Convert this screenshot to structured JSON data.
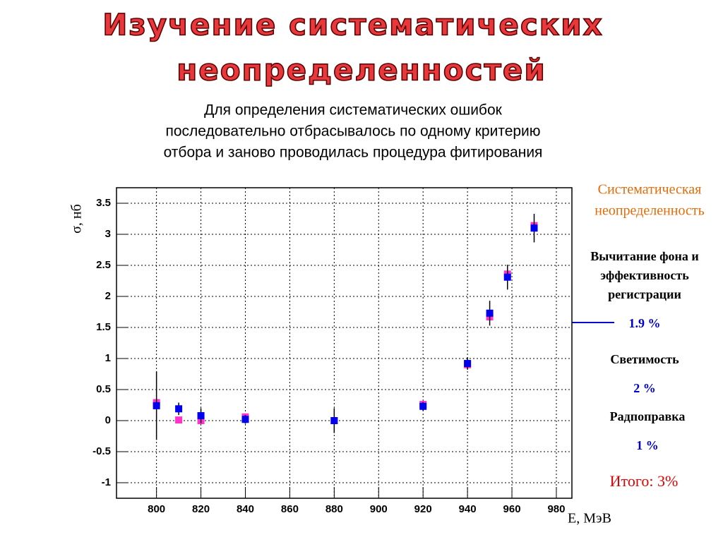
{
  "slide": {
    "title": [
      "Изучение систематических",
      "неопределенностей"
    ],
    "subtitle": [
      "Для определения систематических ошибок",
      "последовательно отбрасывалось по одному критерию",
      "отбора и заново проводилась процедура фитирования"
    ],
    "side": {
      "heading": [
        "Систематическая",
        "неопределенность"
      ],
      "items": [
        {
          "label": [
            "Вычитание фона и",
            "эффективность",
            "регистрации"
          ],
          "value": "1.9 %"
        },
        {
          "label": [
            "Светимость"
          ],
          "value": "2 %"
        },
        {
          "label": [
            "Радпоправка"
          ],
          "value": "1 %"
        }
      ],
      "total": "Итого: 3%"
    }
  },
  "chart_data": {
    "type": "scatter",
    "y_label": "σ, нб",
    "x_label": "E, МэВ",
    "x": [
      800,
      810,
      820,
      840,
      880,
      920,
      940,
      950,
      958,
      970
    ],
    "series": [
      {
        "color": "#ff33cc",
        "values": [
          0.29,
          0.01,
          0.0,
          0.06,
          0.0,
          0.26,
          0.9,
          1.67,
          2.36,
          3.14
        ]
      },
      {
        "color": "#0000ee",
        "values": [
          0.24,
          0.19,
          0.08,
          0.02,
          0.0,
          0.23,
          0.92,
          1.73,
          2.31,
          3.1
        ],
        "errors": [
          0.55,
          0.1,
          0.12,
          0.07,
          0.2,
          0.07,
          0.1,
          0.2,
          0.2,
          0.23
        ]
      }
    ],
    "xlim": [
      782,
      987
    ],
    "ylim": [
      -1.25,
      3.75
    ],
    "xticks": [
      800,
      820,
      840,
      860,
      880,
      900,
      920,
      940,
      960,
      980
    ],
    "yticks": [
      3.5,
      3,
      2.5,
      2,
      1.5,
      1,
      0.5,
      0,
      -0.5,
      -1
    ],
    "grid": true
  }
}
